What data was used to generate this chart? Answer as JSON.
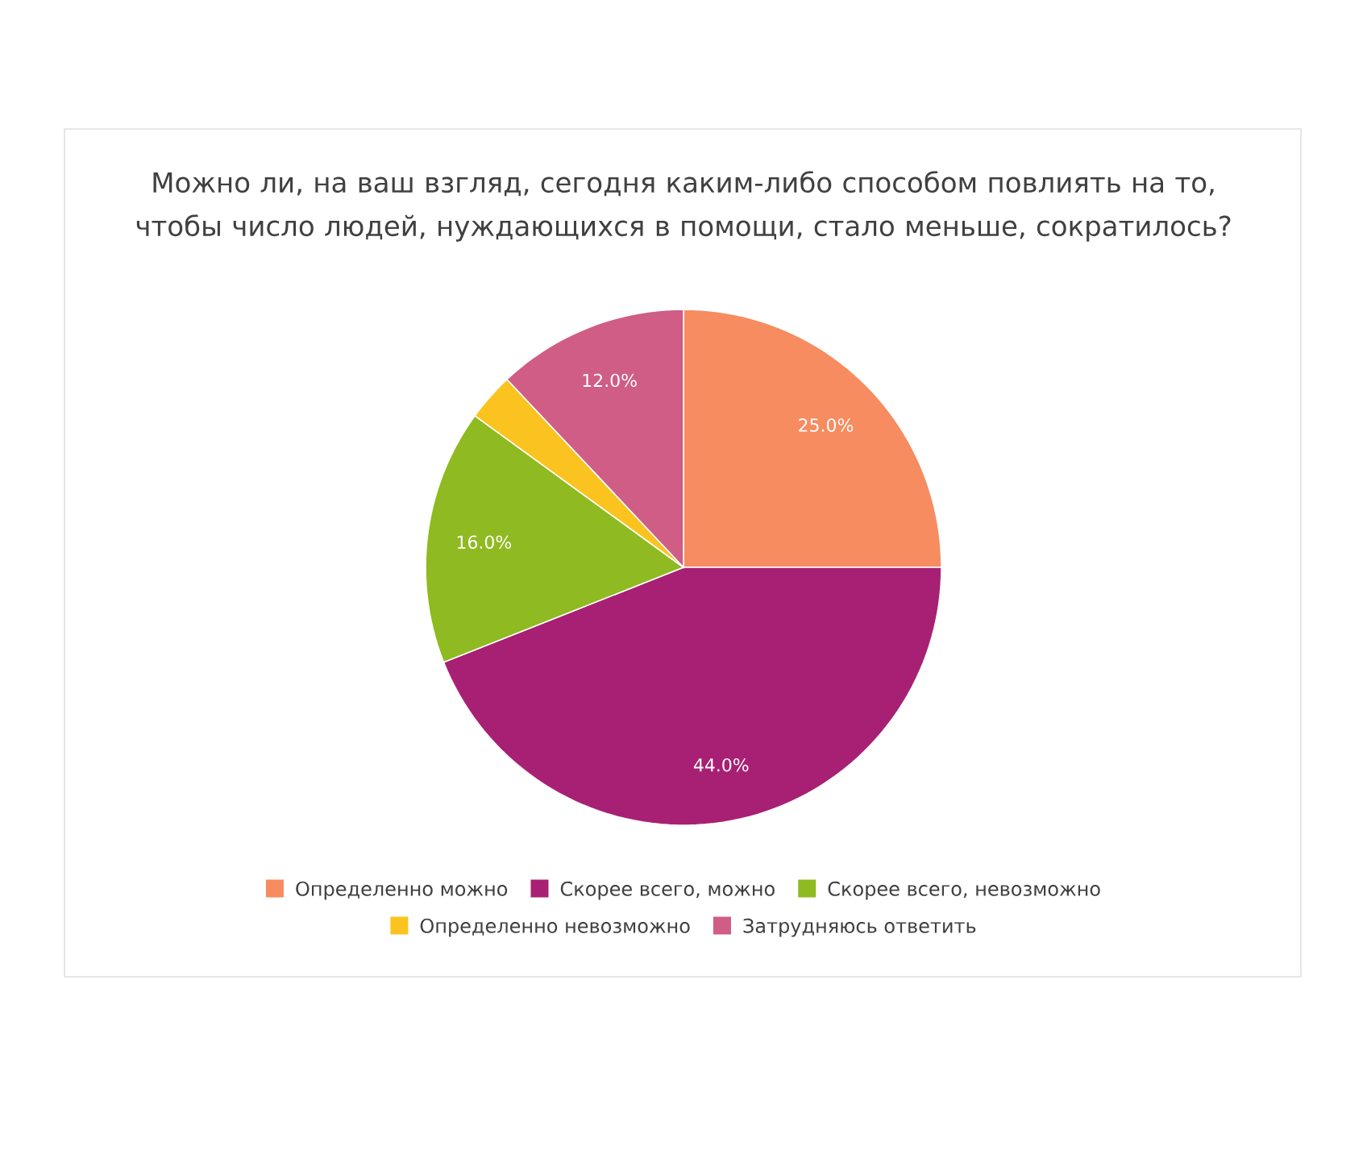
{
  "chart_data": {
    "type": "pie",
    "title": "Можно ли, на ваш взгляд, сегодня каким-либо способом повлиять на то, чтобы число людей, нуждающихся в помощи, стало меньше, сократилось?",
    "categories": [
      "Определенно можно",
      "Скорее всего, можно",
      "Скорее всего, невозможно",
      "Определенно невозможно",
      "Затрудняюсь ответить"
    ],
    "values": [
      25,
      44,
      16,
      3,
      12
    ],
    "value_labels": [
      "25.0%",
      "44.0%",
      "16.0%",
      null,
      "12.0%"
    ],
    "colors": [
      "#f68c60",
      "#a82074",
      "#8fba21",
      "#fbc31f",
      "#d05d85"
    ],
    "legend": "bottom"
  }
}
